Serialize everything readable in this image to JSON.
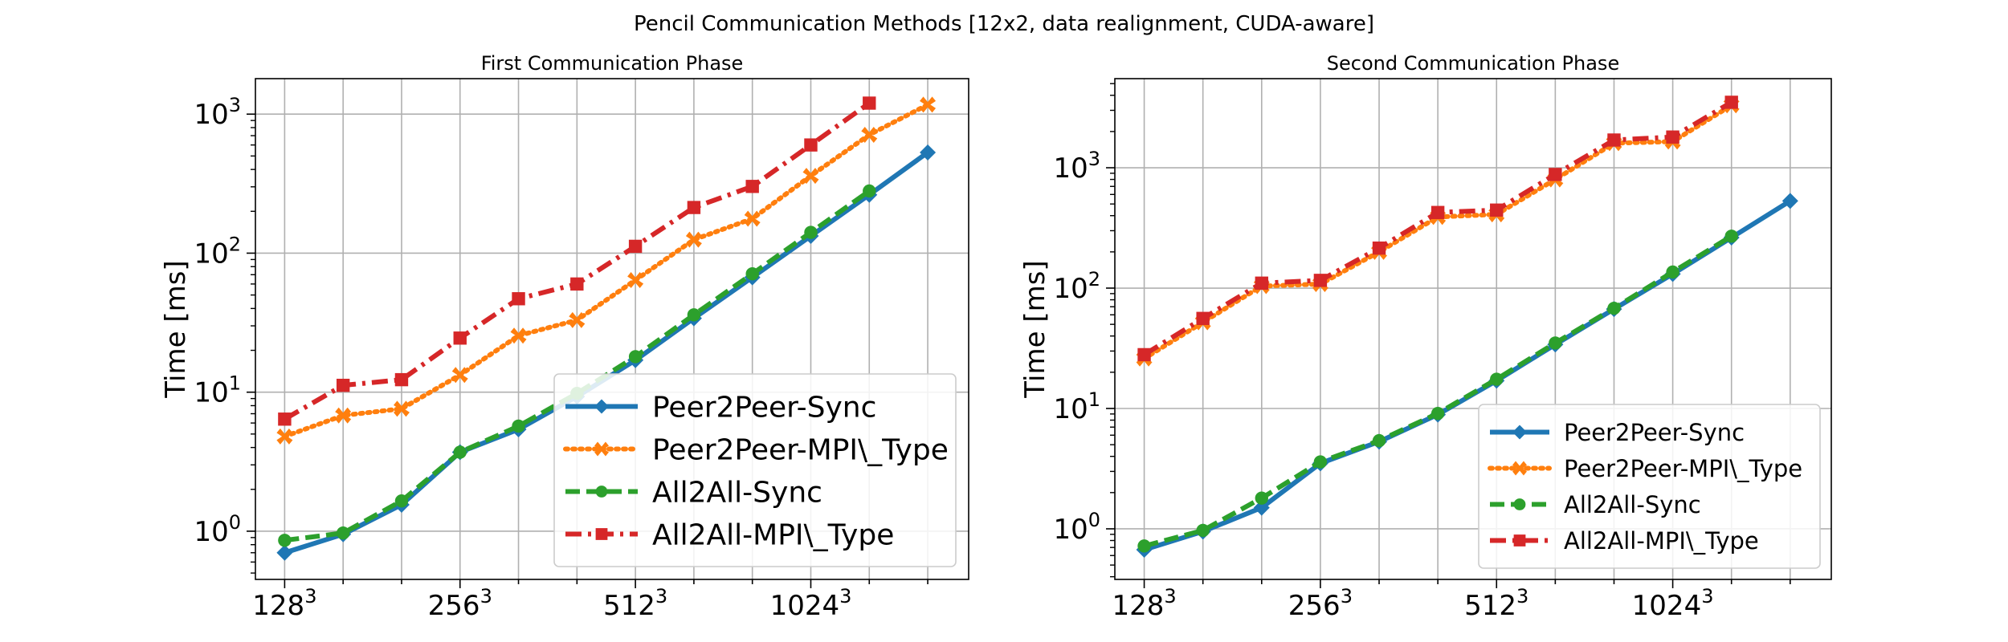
{
  "chart_data": {
    "suptitle": "Pencil Communication Methods [12x2, data realignment, CUDA-aware]",
    "panels": [
      {
        "type": "line",
        "title": "First Communication Phase",
        "xlabel": "",
        "ylabel": "Time [ms]",
        "yscale": "log",
        "ylim": [
          0.45,
          1800
        ],
        "x": [
          0,
          1,
          2,
          3,
          4,
          5,
          6,
          7,
          8,
          9,
          10,
          11
        ],
        "xlim": [
          -0.5,
          11.7
        ],
        "xticks": [
          {
            "pos": 0,
            "base": "128",
            "exp": "3"
          },
          {
            "pos": 3,
            "base": "256",
            "exp": "3"
          },
          {
            "pos": 6,
            "base": "512",
            "exp": "3"
          },
          {
            "pos": 9,
            "base": "1024",
            "exp": "3"
          }
        ],
        "yticks": [
          {
            "value": 1,
            "base": "10",
            "exp": "0"
          },
          {
            "value": 10,
            "base": "10",
            "exp": "1"
          },
          {
            "value": 100,
            "base": "10",
            "exp": "2"
          },
          {
            "value": 1000,
            "base": "10",
            "exp": "3"
          }
        ],
        "grid": true,
        "legend_position": "lower-right",
        "legend_font": "large",
        "series": [
          {
            "name": "Peer2Peer-Sync",
            "color": "#1f77b4",
            "dash": "solid",
            "marker": "diamond",
            "values": [
              0.7,
              0.95,
              1.55,
              3.7,
              5.4,
              9.3,
              17,
              34,
              67,
              133,
              263,
              530
            ]
          },
          {
            "name": "Peer2Peer-MPI\\_Type",
            "color": "#ff7f0e",
            "dash": "dotted",
            "marker": "x",
            "values": [
              4.8,
              6.8,
              7.6,
              13.3,
              25.5,
              33,
              64,
              125,
              177,
              360,
              710,
              1170
            ]
          },
          {
            "name": "All2All-Sync",
            "color": "#2ca02c",
            "dash": "dashed",
            "marker": "circle",
            "values": [
              0.86,
              0.97,
              1.65,
              3.7,
              5.7,
              9.8,
              18,
              36,
              71,
              141,
              280,
              null
            ]
          },
          {
            "name": "All2All-MPI\\_Type",
            "color": "#d62728",
            "dash": "dashdot",
            "marker": "square",
            "values": [
              6.4,
              11.2,
              12.3,
              24.5,
              47,
              60,
              112,
              213,
              302,
              600,
              1200,
              null
            ]
          }
        ]
      },
      {
        "type": "line",
        "title": "Second Communication Phase",
        "xlabel": "",
        "ylabel": "Time [ms]",
        "yscale": "log",
        "ylim": [
          0.38,
          5500
        ],
        "x": [
          0,
          1,
          2,
          3,
          4,
          5,
          6,
          7,
          8,
          9,
          10,
          11
        ],
        "xlim": [
          -0.5,
          11.7
        ],
        "xticks": [
          {
            "pos": 0,
            "base": "128",
            "exp": "3"
          },
          {
            "pos": 3,
            "base": "256",
            "exp": "3"
          },
          {
            "pos": 6,
            "base": "512",
            "exp": "3"
          },
          {
            "pos": 9,
            "base": "1024",
            "exp": "3"
          }
        ],
        "yticks": [
          {
            "value": 1,
            "base": "10",
            "exp": "0"
          },
          {
            "value": 10,
            "base": "10",
            "exp": "1"
          },
          {
            "value": 100,
            "base": "10",
            "exp": "2"
          },
          {
            "value": 1000,
            "base": "10",
            "exp": "3"
          }
        ],
        "grid": true,
        "legend_position": "lower-right",
        "legend_font": "medium",
        "series": [
          {
            "name": "Peer2Peer-Sync",
            "color": "#1f77b4",
            "dash": "solid",
            "marker": "diamond",
            "values": [
              0.67,
              0.95,
              1.5,
              3.5,
              5.3,
              8.9,
              17,
              34,
              67,
              131,
              263,
              530
            ]
          },
          {
            "name": "Peer2Peer-MPI\\_Type",
            "color": "#ff7f0e",
            "dash": "dotted",
            "marker": "x",
            "values": [
              26,
              52,
              104,
              108,
              200,
              390,
              410,
              800,
              1600,
              1650,
              3300,
              null
            ]
          },
          {
            "name": "All2All-Sync",
            "color": "#2ca02c",
            "dash": "dashed",
            "marker": "circle",
            "values": [
              0.72,
              0.97,
              1.8,
              3.6,
              5.4,
              9.1,
              17.5,
              35,
              68,
              136,
              270,
              null
            ]
          },
          {
            "name": "All2All-MPI\\_Type",
            "color": "#d62728",
            "dash": "dashdot",
            "marker": "square",
            "values": [
              28,
              56,
              110,
              116,
              215,
              425,
              445,
              880,
              1700,
              1800,
              3500,
              null
            ]
          }
        ]
      }
    ]
  }
}
